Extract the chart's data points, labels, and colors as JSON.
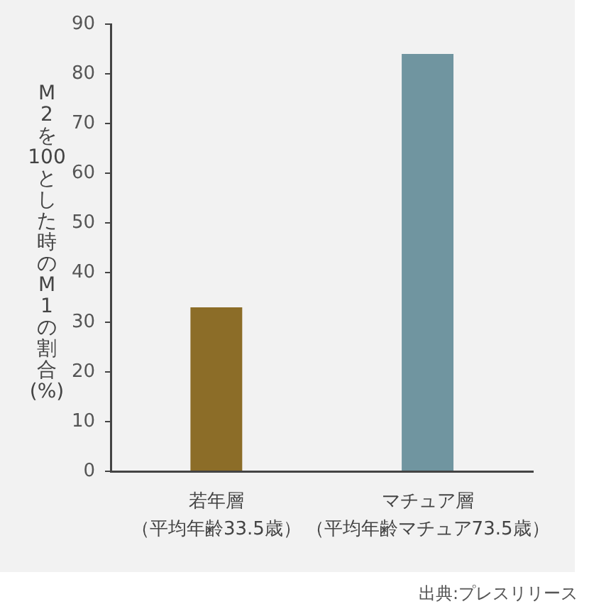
{
  "chart_data": {
    "type": "bar",
    "categories": [
      "若年層（平均年齢33.5歳）",
      "マチュア層（平均年齢マチュア73.5歳）"
    ],
    "values": [
      33,
      84
    ],
    "colors": [
      "#8c6d28",
      "#7095a0"
    ],
    "ylabel": "M2を100とした時のM1の割合(%)",
    "ylim": [
      0,
      90
    ],
    "yticks": [
      0,
      10,
      20,
      30,
      40,
      50,
      60,
      70,
      80,
      90
    ],
    "annotations": [
      "出典:プレスリリース"
    ]
  }
}
